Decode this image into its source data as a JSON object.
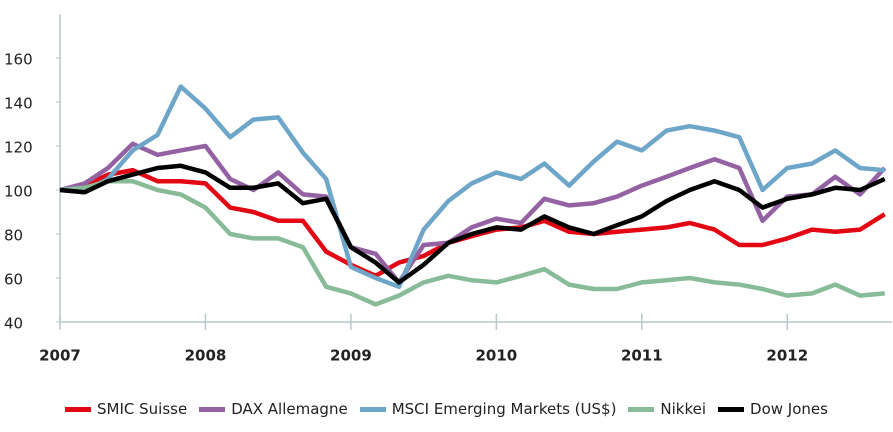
{
  "chart_data": {
    "type": "line",
    "x": [
      2007,
      2007.17,
      2007.33,
      2007.5,
      2007.67,
      2007.83,
      2008,
      2008.17,
      2008.33,
      2008.5,
      2008.67,
      2008.83,
      2009,
      2009.17,
      2009.33,
      2009.5,
      2009.67,
      2009.83,
      2010,
      2010.17,
      2010.33,
      2010.5,
      2010.67,
      2010.83,
      2011,
      2011.17,
      2011.33,
      2011.5,
      2011.67,
      2011.83,
      2012,
      2012.17,
      2012.33,
      2012.5,
      2012.67
    ],
    "series": [
      {
        "name": "SMIC Suisse",
        "color": "#e30613",
        "values": [
          100,
          102,
          107,
          109,
          104,
          104,
          103,
          92,
          90,
          86,
          86,
          72,
          66,
          61,
          67,
          70,
          76,
          79,
          82,
          83,
          86,
          81,
          80,
          81,
          82,
          83,
          85,
          82,
          75,
          75,
          78,
          82,
          81,
          82,
          89
        ]
      },
      {
        "name": "DAX Allemagne",
        "color": "#9461a3",
        "values": [
          100,
          103,
          110,
          121,
          116,
          118,
          120,
          105,
          100,
          108,
          98,
          97,
          74,
          71,
          58,
          75,
          76,
          83,
          87,
          85,
          96,
          93,
          94,
          97,
          102,
          106,
          110,
          114,
          110,
          86,
          97,
          98,
          106,
          98,
          110
        ]
      },
      {
        "name": "MSCI Emerging Markets (US$)",
        "color": "#6ea6c9",
        "values": [
          100,
          99,
          105,
          118,
          125,
          147,
          137,
          124,
          132,
          133,
          117,
          105,
          65,
          60,
          56,
          82,
          95,
          103,
          108,
          105,
          112,
          102,
          113,
          122,
          118,
          127,
          129,
          127,
          124,
          100,
          110,
          112,
          118,
          110,
          109
        ]
      },
      {
        "name": "Nikkei",
        "color": "#88bb98",
        "values": [
          100,
          101,
          104,
          104,
          100,
          98,
          92,
          80,
          78,
          78,
          74,
          56,
          53,
          48,
          52,
          58,
          61,
          59,
          58,
          61,
          64,
          57,
          55,
          55,
          58,
          59,
          60,
          58,
          57,
          55,
          52,
          53,
          57,
          52,
          53
        ]
      },
      {
        "name": "Dow Jones",
        "color": "#000000",
        "values": [
          100,
          99,
          104,
          107,
          110,
          111,
          108,
          101,
          101,
          103,
          94,
          96,
          74,
          67,
          58,
          66,
          76,
          80,
          83,
          82,
          88,
          83,
          80,
          84,
          88,
          95,
          100,
          104,
          100,
          92,
          96,
          98,
          101,
          100,
          105
        ]
      }
    ],
    "xlim": [
      2007,
      2012.72
    ],
    "xticks": [
      2007,
      2008,
      2009,
      2010,
      2011,
      2012
    ],
    "ylim": [
      40,
      180
    ],
    "yticks": [
      40,
      60,
      80,
      100,
      120,
      140,
      160
    ],
    "grid": false
  }
}
